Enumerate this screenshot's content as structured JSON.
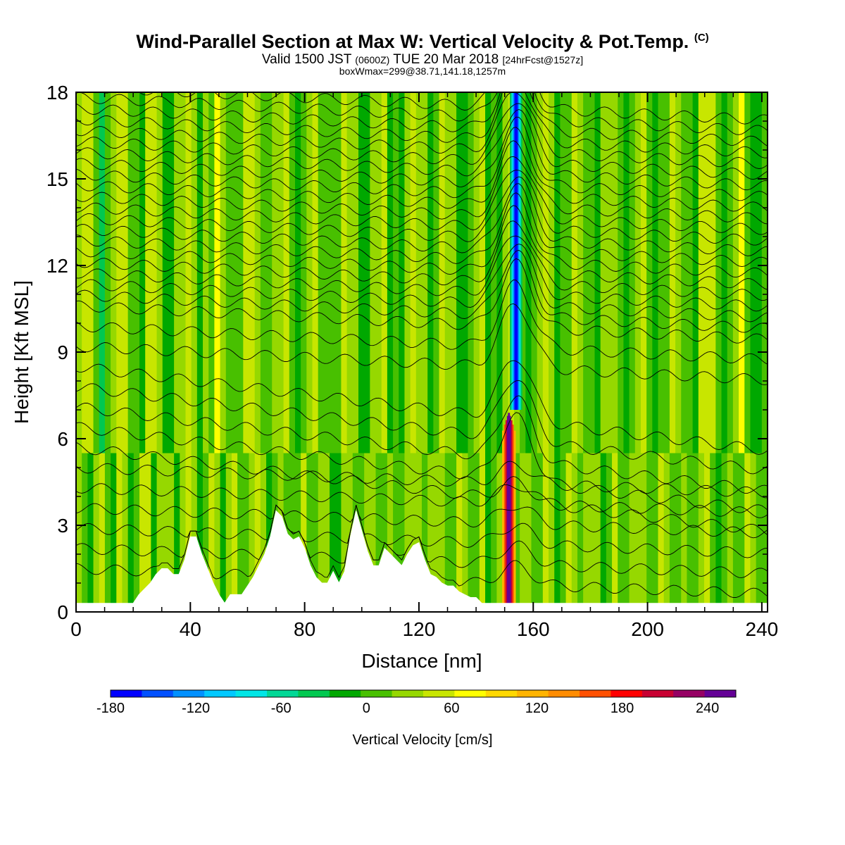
{
  "header": {
    "title_main": "Wind-Parallel Section at Max W: Vertical Velocity & Pot.Temp.",
    "title_mark": "(C)",
    "subtitle_a": "Valid 1500 JST",
    "subtitle_b": "(0600Z)",
    "subtitle_c": "TUE 20 Mar 2018",
    "subtitle_d": "[24hrFcst@1527z]",
    "subtitle_line2": "boxWmax=299@38.71,141.18,1257m"
  },
  "chart_data": {
    "type": "heatmap",
    "xlabel": "Distance [nm]",
    "ylabel": "Height [Kft MSL]",
    "xlim": [
      0,
      242
    ],
    "ylim": [
      0,
      18
    ],
    "xticks": [
      0,
      40,
      80,
      120,
      160,
      200,
      240
    ],
    "yticks": [
      0,
      3,
      6,
      9,
      12,
      15,
      18
    ],
    "colorbar": {
      "label": "Vertical Velocity [cm/s]",
      "ticks": [
        -180,
        -120,
        -60,
        0,
        60,
        120,
        180,
        240
      ],
      "min": -180,
      "max": 260,
      "step": 20,
      "colors": [
        "#0000ff",
        "#0050ff",
        "#0090ff",
        "#00c8ff",
        "#00e6e6",
        "#00d896",
        "#00c850",
        "#00a800",
        "#48c000",
        "#96d800",
        "#c8e600",
        "#ffff00",
        "#ffd800",
        "#ffb400",
        "#ff8c00",
        "#ff5000",
        "#ff0000",
        "#c80032",
        "#960064",
        "#640096"
      ]
    },
    "terrain_profile": {
      "x": [
        0,
        20,
        22,
        24,
        26,
        28,
        30,
        32,
        34,
        36,
        38,
        40,
        42,
        44,
        46,
        48,
        50,
        52,
        54,
        58,
        60,
        62,
        64,
        66,
        68,
        70,
        72,
        74,
        76,
        78,
        80,
        82,
        84,
        86,
        88,
        90,
        92,
        94,
        96,
        98,
        100,
        102,
        104,
        106,
        108,
        110,
        112,
        114,
        116,
        118,
        120,
        122,
        124,
        126,
        128,
        130,
        132,
        134,
        136,
        138,
        140,
        142,
        144,
        146,
        148,
        150,
        152,
        242
      ],
      "y": [
        0.3,
        0.3,
        0.6,
        0.8,
        1.0,
        1.3,
        1.5,
        1.5,
        1.3,
        1.3,
        1.8,
        2.6,
        2.6,
        2.0,
        1.5,
        1.0,
        0.6,
        0.3,
        0.6,
        0.6,
        0.9,
        1.2,
        1.6,
        2.0,
        2.6,
        3.5,
        3.3,
        2.7,
        2.5,
        2.6,
        2.2,
        1.6,
        1.2,
        1.0,
        1.0,
        1.4,
        1.0,
        1.4,
        2.6,
        3.5,
        2.8,
        2.1,
        1.6,
        1.6,
        2.2,
        2.0,
        1.8,
        1.6,
        2.0,
        2.3,
        2.4,
        1.8,
        1.3,
        1.2,
        1.0,
        0.9,
        0.9,
        0.7,
        0.6,
        0.5,
        0.5,
        0.3,
        0.3,
        0.3,
        0.3,
        0.3,
        0.3,
        0.3
      ]
    },
    "features": [
      {
        "name": "downdraft",
        "x": 154,
        "y_range": [
          7,
          18
        ],
        "value_min": -180
      },
      {
        "name": "updraft",
        "x": 151.5,
        "y_range": [
          0.3,
          7
        ],
        "value_max": 260
      }
    ]
  }
}
